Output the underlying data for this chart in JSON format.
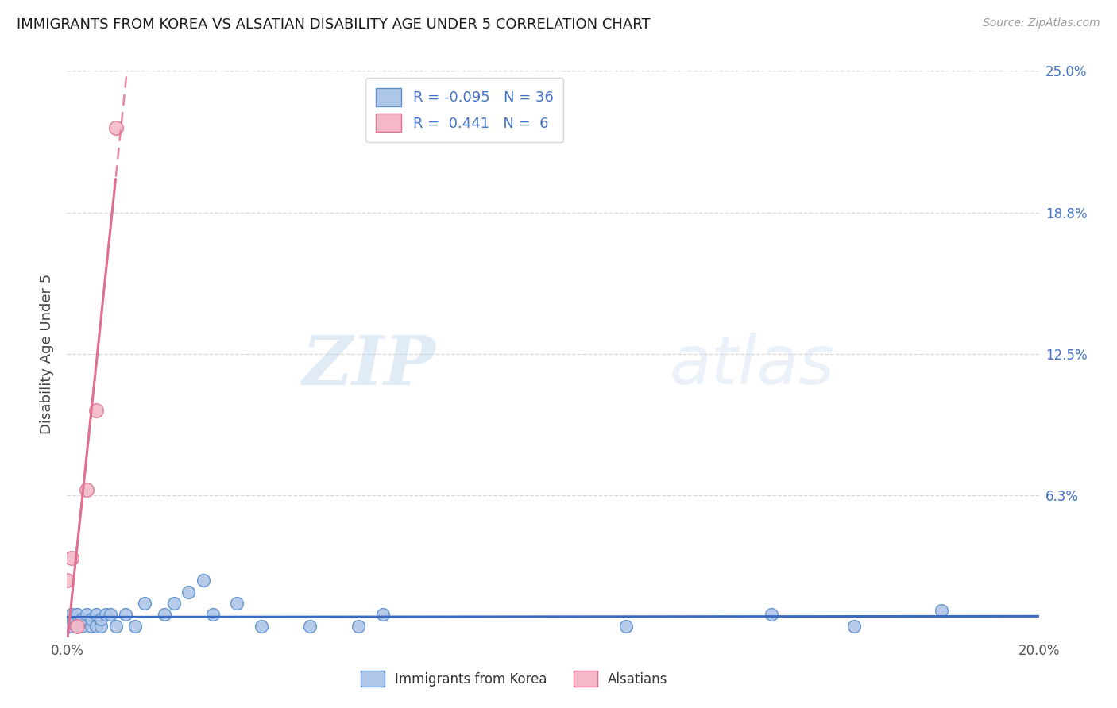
{
  "title": "IMMIGRANTS FROM KOREA VS ALSATIAN DISABILITY AGE UNDER 5 CORRELATION CHART",
  "source": "Source: ZipAtlas.com",
  "ylabel": "Disability Age Under 5",
  "legend_korea_R": "-0.095",
  "legend_korea_N": "36",
  "legend_alsatian_R": "0.441",
  "legend_alsatian_N": "6",
  "legend_label_korea": "Immigrants from Korea",
  "legend_label_alsatian": "Alsatians",
  "korea_color": "#aec6e8",
  "korea_edge_color": "#5b8fcc",
  "korea_line_color": "#3b6bbf",
  "alsatian_color": "#f5b8c8",
  "alsatian_edge_color": "#e07090",
  "alsatian_line_color": "#e07090",
  "background_color": "#ffffff",
  "grid_color": "#d8d8d8",
  "title_color": "#1a1a1a",
  "source_color": "#999999",
  "right_label_color": "#4472c4",
  "xlim": [
    0.0,
    0.2
  ],
  "ylim": [
    0.0,
    0.25
  ],
  "korea_x": [
    0.0,
    0.0005,
    0.001,
    0.001,
    0.0015,
    0.002,
    0.002,
    0.003,
    0.003,
    0.004,
    0.005,
    0.005,
    0.006,
    0.006,
    0.007,
    0.007,
    0.008,
    0.009,
    0.01,
    0.012,
    0.014,
    0.016,
    0.02,
    0.022,
    0.025,
    0.028,
    0.03,
    0.035,
    0.04,
    0.05,
    0.06,
    0.065,
    0.115,
    0.145,
    0.162,
    0.18
  ],
  "korea_y": [
    0.008,
    0.005,
    0.005,
    0.01,
    0.008,
    0.005,
    0.01,
    0.005,
    0.008,
    0.01,
    0.005,
    0.008,
    0.005,
    0.01,
    0.005,
    0.008,
    0.01,
    0.01,
    0.005,
    0.01,
    0.005,
    0.015,
    0.01,
    0.015,
    0.02,
    0.025,
    0.01,
    0.015,
    0.005,
    0.005,
    0.005,
    0.01,
    0.005,
    0.01,
    0.005,
    0.012
  ],
  "alsatian_x": [
    0.0,
    0.001,
    0.002,
    0.004,
    0.006,
    0.01
  ],
  "alsatian_y": [
    0.025,
    0.035,
    0.005,
    0.065,
    0.1,
    0.225
  ],
  "watermark_zip": "ZIP",
  "watermark_atlas": "atlas",
  "ytick_vals": [
    0.0625,
    0.125,
    0.1875,
    0.25
  ],
  "ytick_labels": [
    "6.3%",
    "12.5%",
    "18.8%",
    "25.0%"
  ]
}
